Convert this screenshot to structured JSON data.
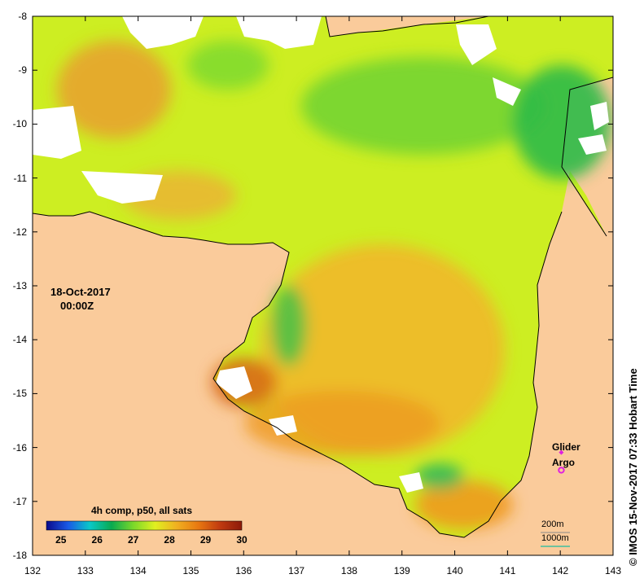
{
  "map": {
    "lat_ticks": [
      "-8",
      "-9",
      "-10",
      "-11",
      "-12",
      "-13",
      "-14",
      "-15",
      "-16",
      "-17",
      "-18"
    ],
    "lon_ticks": [
      "132",
      "133",
      "134",
      "135",
      "136",
      "137",
      "138",
      "139",
      "140",
      "141",
      "142",
      "143"
    ],
    "lat_range": [
      -18,
      -8
    ],
    "lon_range": [
      132,
      143
    ],
    "land_color": "#FACB9B",
    "no_data_color": "#FFFFFF"
  },
  "date": {
    "day": "18-Oct-2017",
    "time": "00:00Z"
  },
  "colorbar": {
    "title": "4h comp, p50, all sats",
    "ticks": [
      "25",
      "26",
      "27",
      "28",
      "29",
      "30"
    ],
    "range": [
      24.6,
      30.0
    ],
    "colors": [
      "#0A0A8C",
      "#1A5AE6",
      "#0AC8C8",
      "#0AAA50",
      "#7AD82A",
      "#E0F020",
      "#F0B020",
      "#E87810",
      "#C03A10",
      "#8C1A0A"
    ]
  },
  "markers": {
    "glider": {
      "label": "Glider",
      "color": "#E020E0",
      "lon": 142.05,
      "lat": -16.0
    },
    "argo": {
      "label": "Argo",
      "color": "#E020E0",
      "lon": 142.05,
      "lat": -16.3
    }
  },
  "scale": {
    "label_200": "200m",
    "label_1000": "1000m",
    "color_1000": "#3FBF9F"
  },
  "credit": "©  IMOS 15-Nov-2017 07:33 Hobart Time"
}
